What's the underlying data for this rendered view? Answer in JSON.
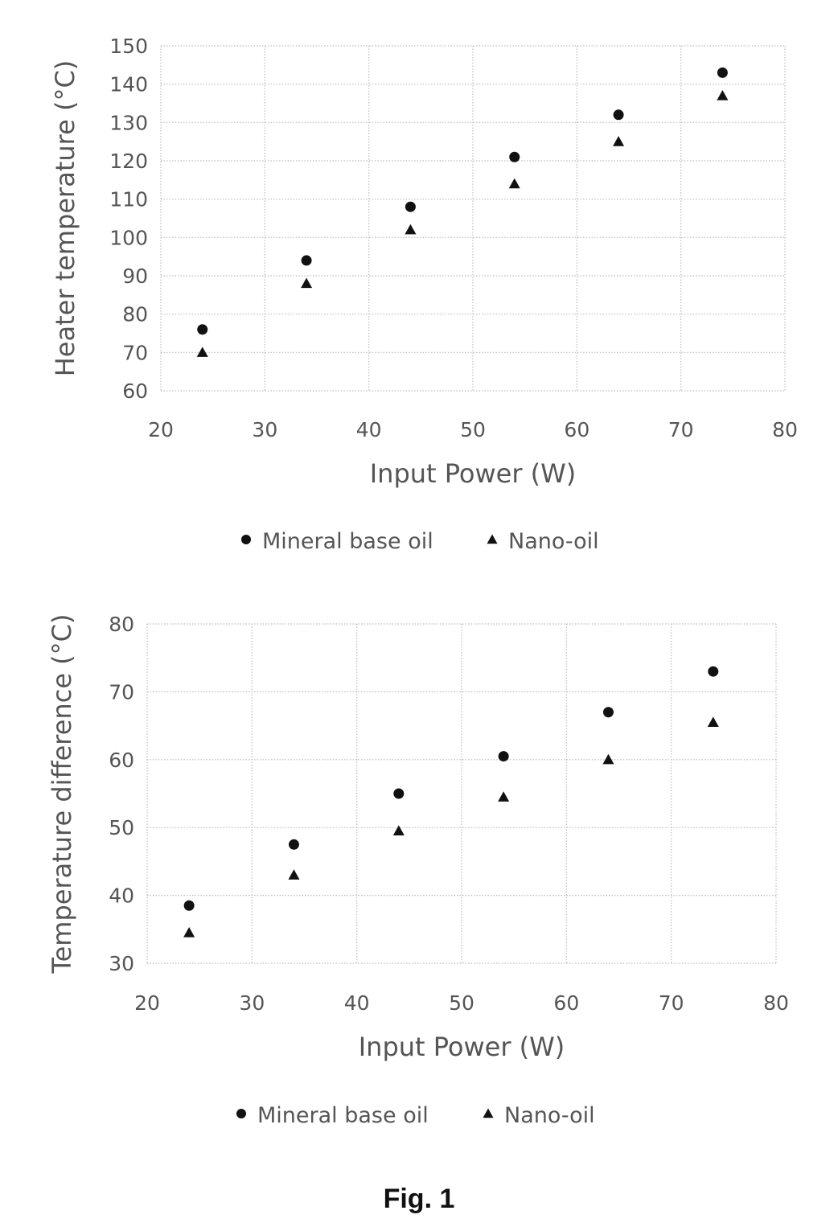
{
  "caption": "Fig. 1",
  "chart_data": [
    {
      "type": "scatter",
      "xlabel": "Input Power (W)",
      "ylabel": "Heater temperature (°C)",
      "xlim": [
        20,
        80
      ],
      "ylim": [
        60,
        150
      ],
      "xticks": [
        "20",
        "30",
        "40",
        "50",
        "60",
        "70",
        "80"
      ],
      "yticks": [
        "60",
        "70",
        "80",
        "90",
        "100",
        "110",
        "120",
        "130",
        "140",
        "150"
      ],
      "grid": true,
      "legend_position": "bottom",
      "series": [
        {
          "name": "Mineral base oil",
          "marker": "circle",
          "x": [
            24,
            34,
            44,
            54,
            64,
            74
          ],
          "y": [
            76,
            94,
            108,
            121,
            132,
            143
          ]
        },
        {
          "name": "Nano-oil",
          "marker": "triangle",
          "x": [
            24,
            34,
            44,
            54,
            64,
            74
          ],
          "y": [
            70,
            88,
            102,
            114,
            125,
            137
          ]
        }
      ]
    },
    {
      "type": "scatter",
      "xlabel": "Input Power (W)",
      "ylabel": "Temperature difference (°C)",
      "xlim": [
        20,
        80
      ],
      "ylim": [
        30,
        80
      ],
      "xticks": [
        "20",
        "30",
        "40",
        "50",
        "60",
        "70",
        "80"
      ],
      "yticks": [
        "30",
        "40",
        "50",
        "60",
        "70",
        "80"
      ],
      "grid": true,
      "legend_position": "bottom",
      "series": [
        {
          "name": "Mineral base oil",
          "marker": "circle",
          "x": [
            24,
            34,
            44,
            54,
            64,
            74
          ],
          "y": [
            38.5,
            47.5,
            55,
            60.5,
            67,
            73
          ]
        },
        {
          "name": "Nano-oil",
          "marker": "triangle",
          "x": [
            24,
            34,
            44,
            54,
            64,
            74
          ],
          "y": [
            34.5,
            43,
            49.5,
            54.5,
            60,
            65.5
          ]
        }
      ]
    }
  ]
}
